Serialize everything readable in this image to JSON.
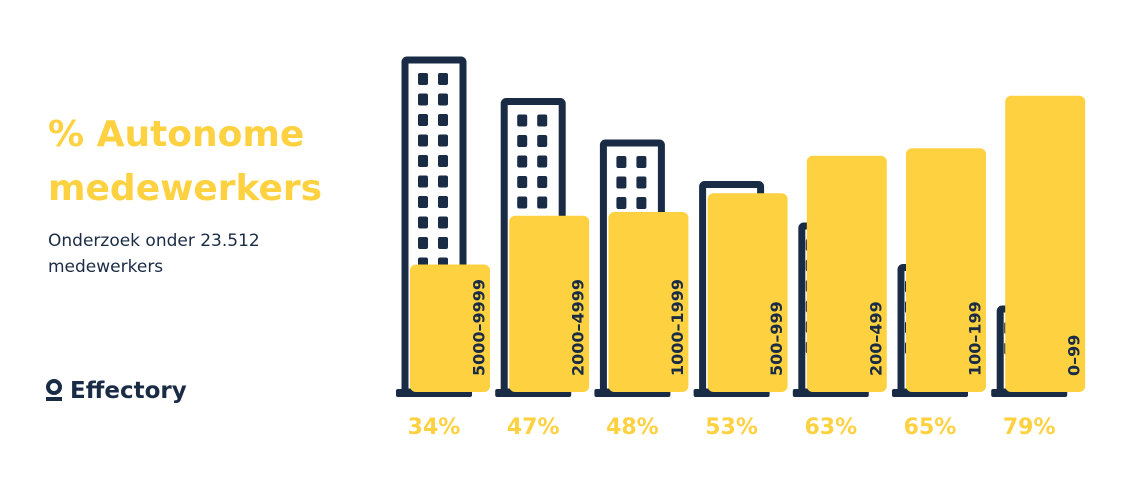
{
  "chart_data": {
    "type": "bar",
    "title": "% Autonome medewerkers",
    "subtitle": "Onderzoek onder 23.512 medewerkers",
    "brand": "Effectory",
    "categories": [
      "5000–9999",
      "2000–4999",
      "1000–1999",
      "500–999",
      "200–499",
      "100–199",
      "0–99"
    ],
    "values": [
      34,
      47,
      48,
      53,
      63,
      65,
      79
    ],
    "value_labels": [
      "34%",
      "47%",
      "48%",
      "53%",
      "63%",
      "65%",
      "79%"
    ],
    "color": "#fdd140"
  }
}
